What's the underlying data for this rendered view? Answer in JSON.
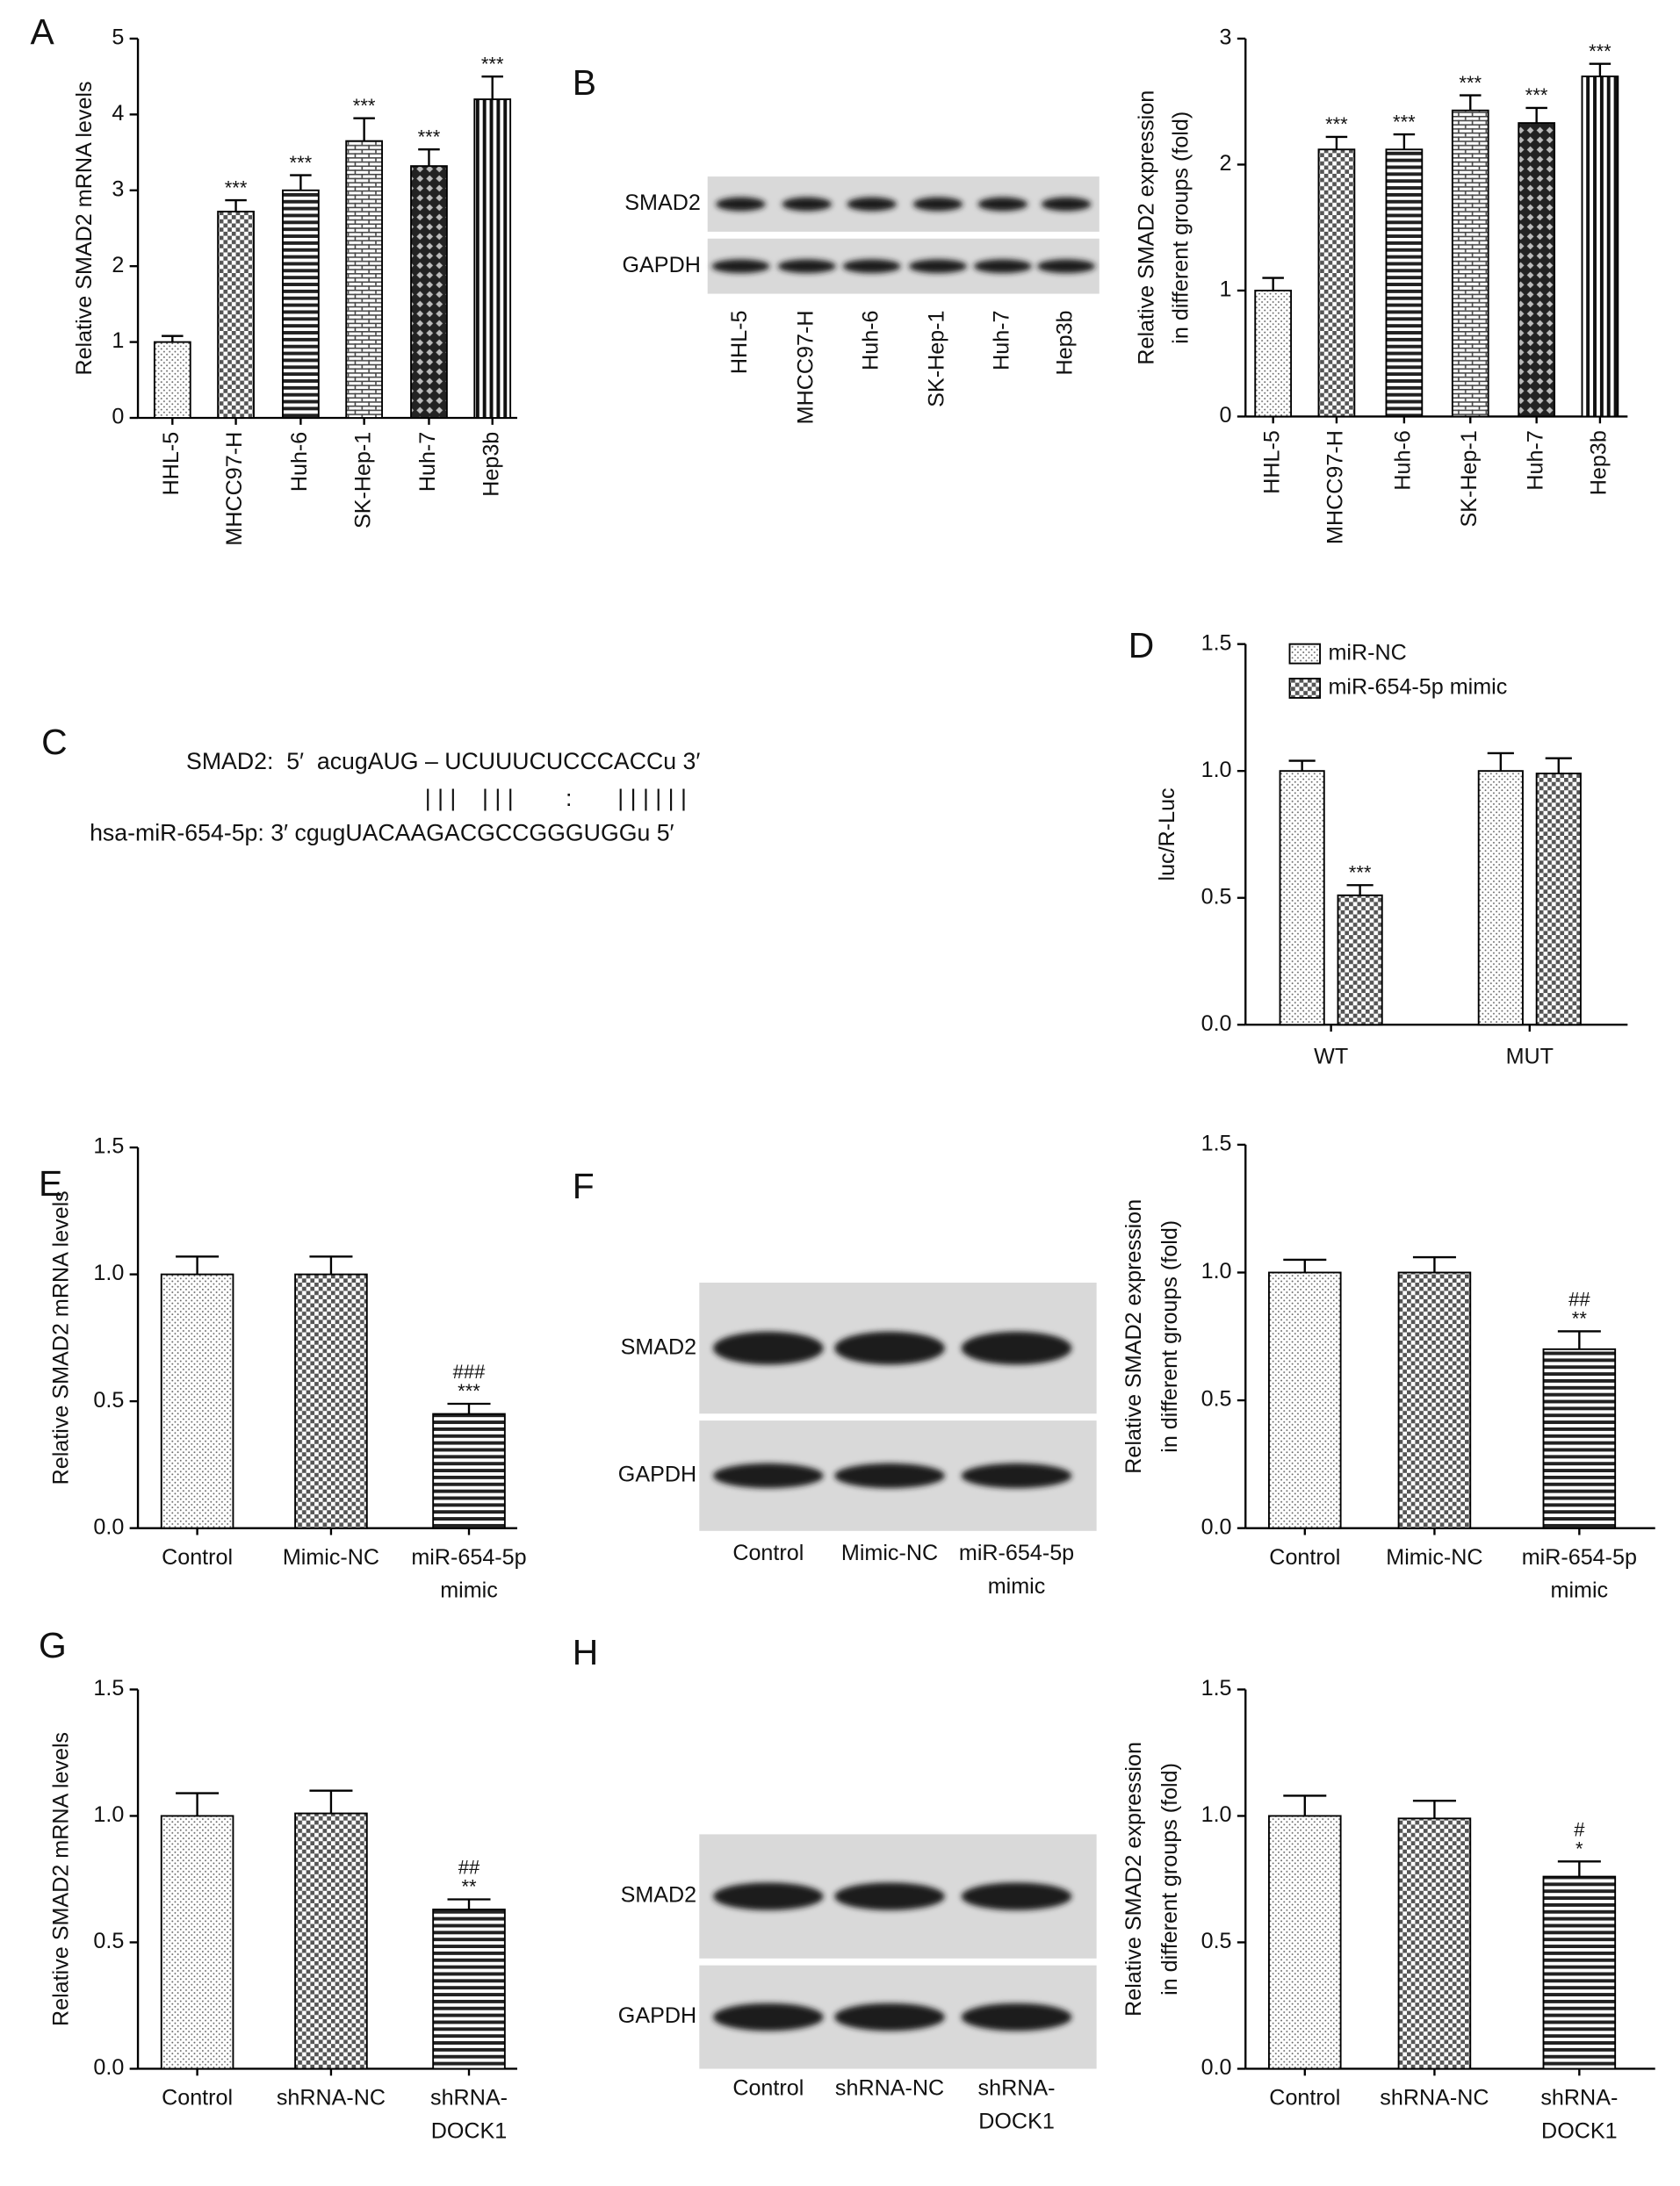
{
  "chart_data": [
    {
      "type": "bar",
      "panel": "A",
      "ylabel": "Relative SMAD2 mRNA levels",
      "categories": [
        "HHL-5",
        "MHCC97-H",
        "Huh-6",
        "SK-Hep-1",
        "Huh-7",
        "Hep3b"
      ],
      "values": [
        1.0,
        2.72,
        3.0,
        3.65,
        3.32,
        4.2
      ],
      "errors": [
        0.08,
        0.15,
        0.2,
        0.3,
        0.22,
        0.3
      ],
      "significance": [
        null,
        [
          "***"
        ],
        [
          "***"
        ],
        [
          "***"
        ],
        [
          "***"
        ],
        [
          "***"
        ]
      ],
      "patterns": [
        "dots",
        "checker",
        "hstripes",
        "brick",
        "diamond",
        "vstripes"
      ],
      "color": "#000000",
      "ylim": [
        0,
        5
      ],
      "yticks": [
        0,
        1,
        2,
        3,
        4,
        5
      ]
    },
    {
      "type": "bar",
      "panel": "B",
      "ylabel": [
        "Relative SMAD2 expression",
        "in different groups (fold)"
      ],
      "categories": [
        "HHL-5",
        "MHCC97-H",
        "Huh-6",
        "SK-Hep-1",
        "Huh-7",
        "Hep3b"
      ],
      "values": [
        1.0,
        2.12,
        2.12,
        2.43,
        2.33,
        2.7
      ],
      "errors": [
        0.1,
        0.1,
        0.12,
        0.12,
        0.12,
        0.1
      ],
      "significance": [
        null,
        [
          "***"
        ],
        [
          "***"
        ],
        [
          "***"
        ],
        [
          "***"
        ],
        [
          "***"
        ]
      ],
      "patterns": [
        "dots",
        "checker",
        "hstripes",
        "brick",
        "diamond",
        "vstripes"
      ],
      "color": "#000000",
      "ylim": [
        0,
        3
      ],
      "yticks": [
        0,
        1,
        2,
        3
      ]
    },
    {
      "type": "grouped_bar",
      "panel": "D",
      "ylabel": "luc/R-Luc",
      "categories": [
        "WT",
        "MUT"
      ],
      "series": [
        {
          "name": "miR-NC",
          "pattern": "dots",
          "color": "#000000",
          "values": [
            1.0,
            1.0
          ],
          "errors": [
            0.04,
            0.07
          ],
          "significance": [
            null,
            null
          ]
        },
        {
          "name": "miR-654-5p mimic",
          "pattern": "checker",
          "color": "#000000",
          "values": [
            0.51,
            0.99
          ],
          "errors": [
            0.04,
            0.06
          ],
          "significance": [
            [
              "***"
            ],
            null
          ]
        }
      ],
      "ylim": [
        0,
        1.5
      ],
      "yticks": [
        {
          "value": 0,
          "label": "0.0"
        },
        {
          "value": 0.5,
          "label": "0.5"
        },
        {
          "value": 1,
          "label": "1.0"
        },
        {
          "value": 1.5,
          "label": "1.5"
        }
      ]
    },
    {
      "type": "bar",
      "panel": "E",
      "ylabel": "Relative SMAD2 mRNA levels",
      "categories": [
        "Control",
        "Mimic-NC",
        [
          "miR-654-5p",
          "mimic"
        ]
      ],
      "values": [
        1.0,
        1.0,
        0.45
      ],
      "errors": [
        0.07,
        0.07,
        0.04
      ],
      "significance": [
        null,
        null,
        [
          "###",
          "***"
        ]
      ],
      "patterns": [
        "dots",
        "checker",
        "hstripes"
      ],
      "color": "#000000",
      "ylim": [
        0,
        1.5
      ],
      "yticks": [
        {
          "value": 0,
          "label": "0.0"
        },
        {
          "value": 0.5,
          "label": "0.5"
        },
        {
          "value": 1,
          "label": "1.0"
        },
        {
          "value": 1.5,
          "label": "1.5"
        }
      ]
    },
    {
      "type": "bar",
      "panel": "F",
      "ylabel": [
        "Relative SMAD2 expression",
        "in different groups (fold)"
      ],
      "categories": [
        "Control",
        "Mimic-NC",
        [
          "miR-654-5p",
          "mimic"
        ]
      ],
      "values": [
        1.0,
        1.0,
        0.7
      ],
      "errors": [
        0.05,
        0.06,
        0.07
      ],
      "significance": [
        null,
        null,
        [
          "##",
          "**"
        ]
      ],
      "patterns": [
        "dots",
        "checker",
        "hstripes"
      ],
      "color": "#000000",
      "ylim": [
        0,
        1.5
      ],
      "yticks": [
        {
          "value": 0,
          "label": "0.0"
        },
        {
          "value": 0.5,
          "label": "0.5"
        },
        {
          "value": 1,
          "label": "1.0"
        },
        {
          "value": 1.5,
          "label": "1.5"
        }
      ]
    },
    {
      "type": "bar",
      "panel": "G",
      "ylabel": "Relative SMAD2 mRNA levels",
      "categories": [
        "Control",
        "shRNA-NC",
        [
          "shRNA-",
          "DOCK1"
        ]
      ],
      "values": [
        1.0,
        1.01,
        0.63
      ],
      "errors": [
        0.09,
        0.09,
        0.04
      ],
      "significance": [
        null,
        null,
        [
          "##",
          "**"
        ]
      ],
      "patterns": [
        "dots",
        "checker",
        "hstripes"
      ],
      "color": "#000000",
      "ylim": [
        0,
        1.5
      ],
      "yticks": [
        {
          "value": 0,
          "label": "0.0"
        },
        {
          "value": 0.5,
          "label": "0.5"
        },
        {
          "value": 1,
          "label": "1.0"
        },
        {
          "value": 1.5,
          "label": "1.5"
        }
      ]
    },
    {
      "type": "bar",
      "panel": "H",
      "ylabel": [
        "Relative SMAD2 expression",
        "in different groups (fold)"
      ],
      "categories": [
        "Control",
        "shRNA-NC",
        [
          "shRNA-",
          "DOCK1"
        ]
      ],
      "values": [
        1.0,
        0.99,
        0.76
      ],
      "errors": [
        0.08,
        0.07,
        0.06
      ],
      "significance": [
        null,
        null,
        [
          "#",
          "*"
        ]
      ],
      "patterns": [
        "dots",
        "checker",
        "hstripes"
      ],
      "color": "#000000",
      "ylim": [
        0,
        1.5
      ],
      "yticks": [
        {
          "value": 0,
          "label": "0.0"
        },
        {
          "value": 0.5,
          "label": "0.5"
        },
        {
          "value": 1,
          "label": "1.0"
        },
        {
          "value": 1.5,
          "label": "1.5"
        }
      ]
    }
  ],
  "blots": [
    {
      "rows": [
        "SMAD2",
        "GAPDH"
      ],
      "lanes": [
        "HHL-5",
        "MHCC97-H",
        "Huh-6",
        "SK-Hep-1",
        "Huh-7",
        "Hep3b"
      ]
    },
    {
      "rows": [
        "SMAD2",
        "GAPDH"
      ],
      "lanes": [
        "Control",
        "Mimic-NC",
        [
          "miR-654-5p",
          "mimic"
        ]
      ]
    },
    {
      "rows": [
        "SMAD2",
        "GAPDH"
      ],
      "lanes": [
        "Control",
        "shRNA-NC",
        [
          "shRNA-",
          "DOCK1"
        ]
      ]
    }
  ],
  "sequence": {
    "panel": "C",
    "lines": [
      "SMAD2:  5′  acugAUG – UCUUUCUCCCACCu 3′",
      "| | |    | | |        :       | | | | | |",
      "hsa-miR-654-5p: 3′ cgugUACAAGACGCCGGGUGGu 5′"
    ]
  }
}
